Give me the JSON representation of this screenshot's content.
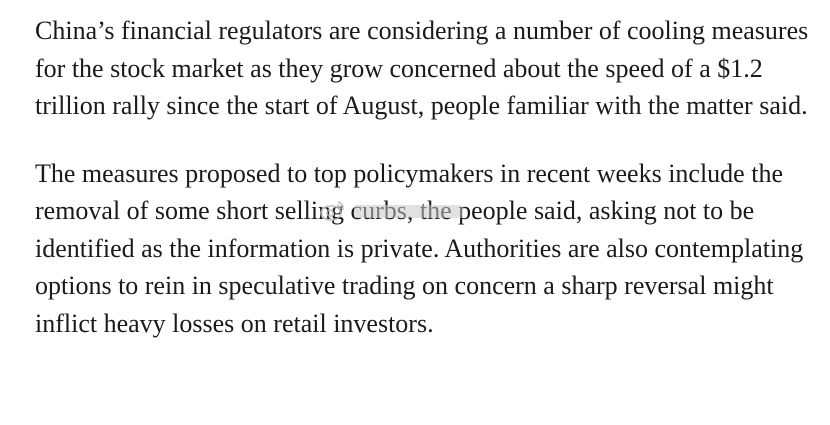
{
  "article": {
    "paragraphs": [
      {
        "text": "China’s financial regulators are considering a number of cooling measures for the stock market as they grow concerned about the speed of a $1.2 trillion rally since the start of August, people familiar with the matter said."
      },
      {
        "text": "The measures proposed to top policymakers in recent weeks include the removal of some short selling curbs, the people said, asking not to be identified as the information is private. Authorities are also contemplating options to rein in speculative trading on concern a sharp reversal might inflict heavy losses on retail investors."
      }
    ]
  },
  "watermark": {
    "icon": "weibo-watermark-icon",
    "color": "#bdbdbd"
  }
}
